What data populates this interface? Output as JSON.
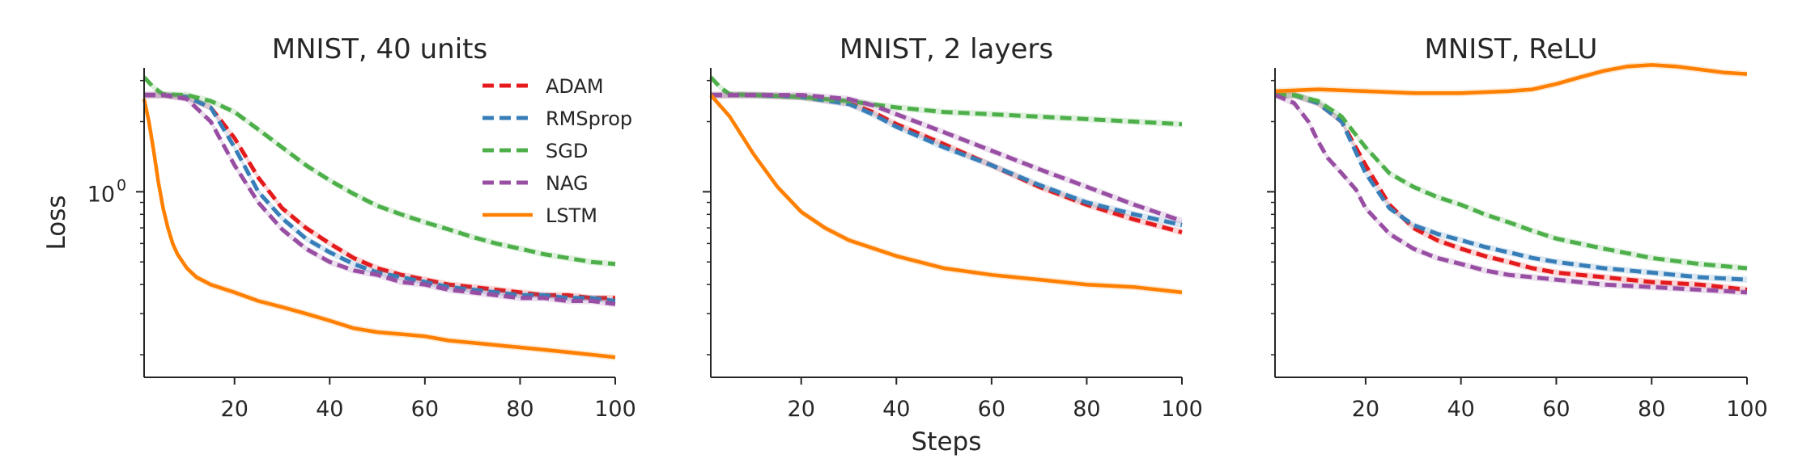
{
  "chart_data": [
    {
      "type": "line",
      "title": "MNIST, 40 units",
      "xlabel": "",
      "ylabel": "Loss",
      "xlim": [
        1,
        100
      ],
      "yscale": "log",
      "ylim": [
        0.16,
        3.4
      ],
      "xticks": [
        20,
        40,
        60,
        80,
        100
      ],
      "yticks": [
        {
          "value": 1,
          "label": "10",
          "sup": "0"
        }
      ],
      "legend": "top-right",
      "grid": false,
      "series": [
        {
          "name": "ADAM",
          "color": "#e41a1c",
          "dash": "14,7",
          "x": [
            1,
            5,
            10,
            15,
            20,
            25,
            30,
            35,
            40,
            45,
            50,
            55,
            60,
            65,
            70,
            75,
            80,
            85,
            90,
            95,
            100
          ],
          "y": [
            2.6,
            2.6,
            2.55,
            2.3,
            1.7,
            1.15,
            0.85,
            0.7,
            0.6,
            0.52,
            0.47,
            0.44,
            0.42,
            0.4,
            0.39,
            0.38,
            0.37,
            0.36,
            0.36,
            0.35,
            0.35
          ]
        },
        {
          "name": "RMSprop",
          "color": "#377eb8",
          "dash": "14,7",
          "x": [
            1,
            5,
            10,
            15,
            20,
            25,
            30,
            35,
            40,
            45,
            50,
            55,
            60,
            65,
            70,
            75,
            80,
            85,
            90,
            95,
            100
          ],
          "y": [
            2.6,
            2.6,
            2.55,
            2.3,
            1.55,
            1.0,
            0.77,
            0.63,
            0.55,
            0.49,
            0.45,
            0.43,
            0.41,
            0.39,
            0.38,
            0.37,
            0.36,
            0.36,
            0.35,
            0.35,
            0.34
          ]
        },
        {
          "name": "SGD",
          "color": "#4daf4a",
          "dash": "14,7",
          "x": [
            1,
            3,
            5,
            10,
            15,
            20,
            25,
            30,
            35,
            40,
            45,
            50,
            55,
            60,
            65,
            70,
            75,
            80,
            85,
            90,
            95,
            100
          ],
          "y": [
            3.1,
            2.8,
            2.62,
            2.6,
            2.45,
            2.2,
            1.85,
            1.55,
            1.3,
            1.12,
            0.98,
            0.87,
            0.8,
            0.74,
            0.69,
            0.64,
            0.6,
            0.57,
            0.54,
            0.52,
            0.5,
            0.49
          ]
        },
        {
          "name": "NAG",
          "color": "#984ea3",
          "dash": "14,7",
          "x": [
            1,
            5,
            10,
            15,
            20,
            25,
            30,
            35,
            40,
            45,
            50,
            55,
            60,
            65,
            70,
            75,
            80,
            85,
            90,
            95,
            100
          ],
          "y": [
            2.6,
            2.6,
            2.5,
            2.0,
            1.3,
            0.9,
            0.69,
            0.57,
            0.5,
            0.46,
            0.44,
            0.41,
            0.4,
            0.38,
            0.37,
            0.36,
            0.35,
            0.35,
            0.34,
            0.34,
            0.33
          ]
        },
        {
          "name": "LSTM",
          "color": "#ff7f00",
          "dash": "",
          "x": [
            1,
            2,
            3,
            4,
            5,
            6,
            7,
            8,
            10,
            12,
            15,
            20,
            25,
            30,
            35,
            40,
            45,
            50,
            55,
            60,
            65,
            70,
            75,
            80,
            85,
            90,
            95,
            100
          ],
          "y": [
            2.5,
            2.0,
            1.5,
            1.1,
            0.85,
            0.7,
            0.6,
            0.54,
            0.47,
            0.43,
            0.4,
            0.37,
            0.34,
            0.32,
            0.3,
            0.28,
            0.26,
            0.25,
            0.245,
            0.24,
            0.23,
            0.225,
            0.22,
            0.215,
            0.21,
            0.205,
            0.2,
            0.195
          ]
        }
      ]
    },
    {
      "type": "line",
      "title": "MNIST, 2 layers",
      "xlabel": "Steps",
      "ylabel": "",
      "xlim": [
        1,
        100
      ],
      "yscale": "log",
      "ylim": [
        0.16,
        3.4
      ],
      "xticks": [
        20,
        40,
        60,
        80,
        100
      ],
      "yticks": [],
      "grid": false,
      "series": [
        {
          "name": "ADAM",
          "color": "#e41a1c",
          "dash": "14,7",
          "x": [
            1,
            10,
            20,
            30,
            35,
            40,
            50,
            60,
            70,
            80,
            90,
            100
          ],
          "y": [
            2.6,
            2.6,
            2.55,
            2.4,
            2.2,
            1.95,
            1.6,
            1.3,
            1.05,
            0.88,
            0.76,
            0.67
          ]
        },
        {
          "name": "RMSprop",
          "color": "#377eb8",
          "dash": "14,7",
          "x": [
            1,
            10,
            20,
            30,
            35,
            40,
            50,
            60,
            70,
            80,
            90,
            100
          ],
          "y": [
            2.6,
            2.6,
            2.55,
            2.38,
            2.15,
            1.9,
            1.55,
            1.3,
            1.07,
            0.9,
            0.8,
            0.72
          ]
        },
        {
          "name": "SGD",
          "color": "#4daf4a",
          "dash": "14,7",
          "x": [
            1,
            3,
            5,
            10,
            20,
            30,
            40,
            50,
            60,
            70,
            80,
            90,
            100
          ],
          "y": [
            3.1,
            2.8,
            2.62,
            2.6,
            2.55,
            2.45,
            2.3,
            2.2,
            2.15,
            2.1,
            2.05,
            2.0,
            1.95
          ]
        },
        {
          "name": "NAG",
          "color": "#984ea3",
          "dash": "14,7",
          "x": [
            1,
            10,
            20,
            30,
            35,
            40,
            50,
            60,
            70,
            80,
            90,
            100
          ],
          "y": [
            2.6,
            2.6,
            2.6,
            2.5,
            2.35,
            2.15,
            1.8,
            1.5,
            1.25,
            1.05,
            0.88,
            0.75
          ]
        },
        {
          "name": "LSTM",
          "color": "#ff7f00",
          "dash": "",
          "x": [
            1,
            5,
            10,
            15,
            20,
            25,
            30,
            40,
            50,
            60,
            70,
            80,
            90,
            100
          ],
          "y": [
            2.6,
            2.1,
            1.45,
            1.05,
            0.82,
            0.7,
            0.62,
            0.53,
            0.47,
            0.44,
            0.42,
            0.4,
            0.39,
            0.37
          ]
        }
      ]
    },
    {
      "type": "line",
      "title": "MNIST, ReLU",
      "xlabel": "",
      "ylabel": "",
      "xlim": [
        1,
        100
      ],
      "yscale": "log",
      "ylim": [
        0.16,
        3.4
      ],
      "xticks": [
        20,
        40,
        60,
        80,
        100
      ],
      "yticks": [],
      "grid": false,
      "series": [
        {
          "name": "ADAM",
          "color": "#e41a1c",
          "dash": "14,7",
          "x": [
            1,
            5,
            10,
            15,
            20,
            25,
            30,
            35,
            40,
            45,
            50,
            55,
            60,
            70,
            80,
            90,
            100
          ],
          "y": [
            2.6,
            2.6,
            2.4,
            2.0,
            1.3,
            0.88,
            0.7,
            0.62,
            0.57,
            0.53,
            0.5,
            0.47,
            0.45,
            0.43,
            0.41,
            0.4,
            0.38
          ]
        },
        {
          "name": "RMSprop",
          "color": "#377eb8",
          "dash": "14,7",
          "x": [
            1,
            5,
            10,
            15,
            20,
            25,
            30,
            35,
            40,
            45,
            50,
            55,
            60,
            70,
            80,
            90,
            100
          ],
          "y": [
            2.6,
            2.6,
            2.4,
            2.0,
            1.2,
            0.85,
            0.72,
            0.66,
            0.62,
            0.58,
            0.55,
            0.52,
            0.5,
            0.47,
            0.45,
            0.43,
            0.42
          ]
        },
        {
          "name": "SGD",
          "color": "#4daf4a",
          "dash": "14,7",
          "x": [
            1,
            5,
            10,
            15,
            20,
            25,
            30,
            35,
            40,
            45,
            50,
            55,
            60,
            70,
            80,
            90,
            100
          ],
          "y": [
            2.6,
            2.6,
            2.45,
            2.1,
            1.55,
            1.2,
            1.05,
            0.95,
            0.88,
            0.8,
            0.74,
            0.68,
            0.63,
            0.57,
            0.52,
            0.49,
            0.47
          ]
        },
        {
          "name": "NAG",
          "color": "#984ea3",
          "dash": "14,7",
          "x": [
            1,
            5,
            8,
            10,
            12,
            15,
            18,
            20,
            25,
            30,
            35,
            40,
            45,
            50,
            60,
            70,
            80,
            90,
            100
          ],
          "y": [
            2.6,
            2.4,
            2.0,
            1.65,
            1.4,
            1.2,
            1.02,
            0.85,
            0.66,
            0.57,
            0.52,
            0.49,
            0.46,
            0.44,
            0.42,
            0.4,
            0.39,
            0.38,
            0.37
          ]
        },
        {
          "name": "LSTM",
          "color": "#ff7f00",
          "dash": "",
          "x": [
            1,
            10,
            20,
            30,
            40,
            50,
            55,
            60,
            65,
            70,
            75,
            80,
            85,
            90,
            95,
            100
          ],
          "y": [
            2.7,
            2.75,
            2.7,
            2.65,
            2.65,
            2.7,
            2.75,
            2.9,
            3.1,
            3.3,
            3.45,
            3.5,
            3.45,
            3.35,
            3.25,
            3.2
          ]
        }
      ]
    }
  ]
}
